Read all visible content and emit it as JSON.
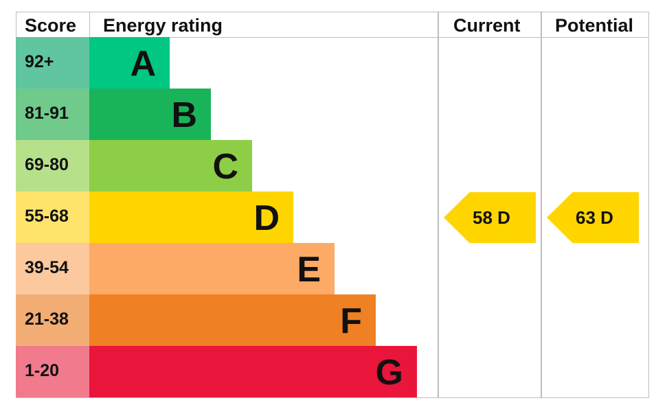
{
  "header": {
    "score": "Score",
    "rating": "Energy rating",
    "current": "Current",
    "potential": "Potential"
  },
  "chart_data": {
    "type": "bar",
    "categories": [
      "A",
      "B",
      "C",
      "D",
      "E",
      "F",
      "G"
    ],
    "bands": [
      {
        "letter": "A",
        "range": "92+",
        "color": "#00c781",
        "score_color": "#5fc6a0"
      },
      {
        "letter": "B",
        "range": "81-91",
        "color": "#19b459",
        "score_color": "#6fca8b"
      },
      {
        "letter": "C",
        "range": "69-80",
        "color": "#8dce46",
        "score_color": "#b7e08b"
      },
      {
        "letter": "D",
        "range": "55-68",
        "color": "#ffd500",
        "score_color": "#ffe36a"
      },
      {
        "letter": "E",
        "range": "39-54",
        "color": "#fcaa65",
        "score_color": "#fcc89d"
      },
      {
        "letter": "F",
        "range": "21-38",
        "color": "#ef8023",
        "score_color": "#f2ad74"
      },
      {
        "letter": "G",
        "range": "1-20",
        "color": "#e9153b",
        "score_color": "#f17a8d"
      }
    ],
    "current": {
      "value": 58,
      "letter": "D",
      "label": "58  D",
      "color": "#ffd500"
    },
    "potential": {
      "value": 63,
      "letter": "D",
      "label": "63  D",
      "color": "#ffd500"
    }
  }
}
